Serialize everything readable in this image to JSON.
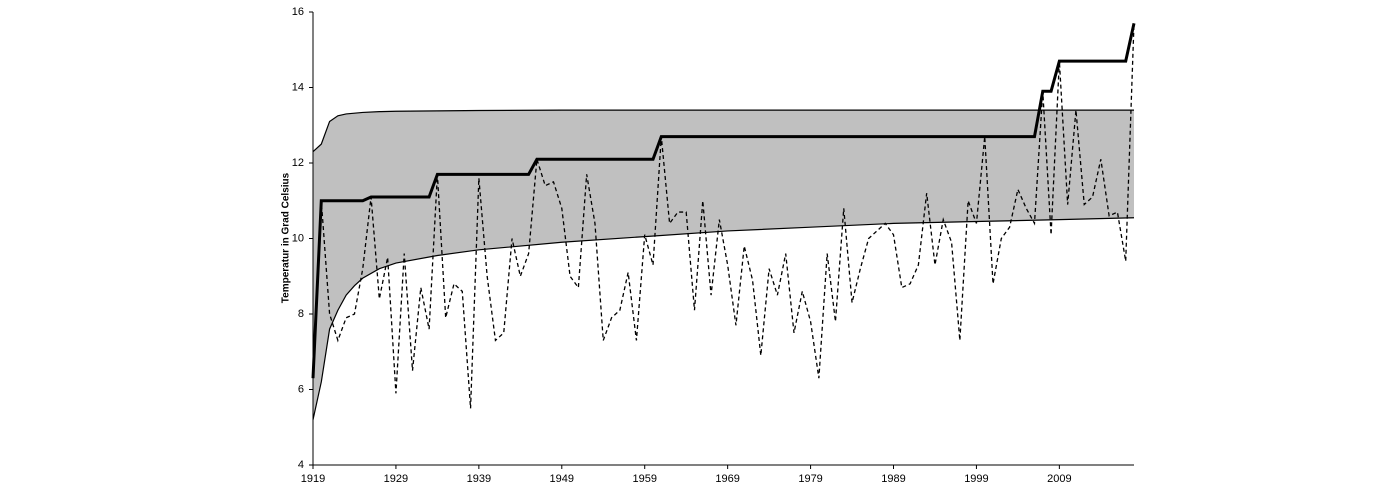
{
  "chart_data": {
    "type": "line",
    "ylabel": "Temperatur in Grad Celsius",
    "x": [
      1919,
      1920,
      1921,
      1922,
      1923,
      1924,
      1925,
      1926,
      1927,
      1928,
      1929,
      1930,
      1931,
      1932,
      1933,
      1934,
      1935,
      1936,
      1937,
      1938,
      1939,
      1940,
      1941,
      1942,
      1943,
      1944,
      1945,
      1946,
      1947,
      1948,
      1949,
      1950,
      1951,
      1952,
      1953,
      1954,
      1955,
      1956,
      1957,
      1958,
      1959,
      1960,
      1961,
      1962,
      1963,
      1964,
      1965,
      1966,
      1967,
      1968,
      1969,
      1970,
      1971,
      1972,
      1973,
      1974,
      1975,
      1976,
      1977,
      1978,
      1979,
      1980,
      1981,
      1982,
      1983,
      1984,
      1985,
      1986,
      1987,
      1988,
      1989,
      1990,
      1991,
      1992,
      1993,
      1994,
      1995,
      1996,
      1997,
      1998,
      1999,
      2000,
      2001,
      2002,
      2003,
      2004,
      2005,
      2006,
      2007,
      2008,
      2009,
      2010,
      2011,
      2012,
      2013,
      2014,
      2015,
      2016,
      2017,
      2018
    ],
    "series": [
      {
        "color": "#000000",
        "dashed": true,
        "width": 1.3,
        "values": [
          6.3,
          11.0,
          8.0,
          7.3,
          7.9,
          8.0,
          9.2,
          11.1,
          8.4,
          9.5,
          5.9,
          9.6,
          6.5,
          8.7,
          7.6,
          11.7,
          7.9,
          8.8,
          8.6,
          5.5,
          11.6,
          9.0,
          7.3,
          7.5,
          10.0,
          9.0,
          9.6,
          12.1,
          11.4,
          11.5,
          10.8,
          9.0,
          8.7,
          11.7,
          10.4,
          7.3,
          7.9,
          8.1,
          9.1,
          7.3,
          10.1,
          9.3,
          12.7,
          10.4,
          10.7,
          10.7,
          8.1,
          11.0,
          8.5,
          10.5,
          9.3,
          7.7,
          9.8,
          8.9,
          6.9,
          9.2,
          8.5,
          9.6,
          7.5,
          8.6,
          7.8,
          6.3,
          9.6,
          7.8,
          10.8,
          8.3,
          9.2,
          10.0,
          10.2,
          10.4,
          10.1,
          8.7,
          8.8,
          9.3,
          11.2,
          9.3,
          10.5,
          9.9,
          7.3,
          11.0,
          10.4,
          12.7,
          8.8,
          10.0,
          10.3,
          11.3,
          10.8,
          10.4,
          13.9,
          10.1,
          14.7,
          10.9,
          13.4,
          10.9,
          11.1,
          12.1,
          10.6,
          10.7,
          9.4,
          15.7
        ]
      },
      {
        "color": "#000000",
        "dashed": false,
        "width": 3,
        "values": [
          6.3,
          11.0,
          11.0,
          11.0,
          11.0,
          11.0,
          11.0,
          11.1,
          11.1,
          11.1,
          11.1,
          11.1,
          11.1,
          11.1,
          11.1,
          11.7,
          11.7,
          11.7,
          11.7,
          11.7,
          11.7,
          11.7,
          11.7,
          11.7,
          11.7,
          11.7,
          11.7,
          12.1,
          12.1,
          12.1,
          12.1,
          12.1,
          12.1,
          12.1,
          12.1,
          12.1,
          12.1,
          12.1,
          12.1,
          12.1,
          12.1,
          12.1,
          12.7,
          12.7,
          12.7,
          12.7,
          12.7,
          12.7,
          12.7,
          12.7,
          12.7,
          12.7,
          12.7,
          12.7,
          12.7,
          12.7,
          12.7,
          12.7,
          12.7,
          12.7,
          12.7,
          12.7,
          12.7,
          12.7,
          12.7,
          12.7,
          12.7,
          12.7,
          12.7,
          12.7,
          12.7,
          12.7,
          12.7,
          12.7,
          12.7,
          12.7,
          12.7,
          12.7,
          12.7,
          12.7,
          12.7,
          12.7,
          12.7,
          12.7,
          12.7,
          12.7,
          12.7,
          12.7,
          13.9,
          13.9,
          14.7,
          14.7,
          14.7,
          14.7,
          14.7,
          14.7,
          14.7,
          14.7,
          14.7,
          15.7
        ]
      }
    ],
    "band": {
      "color": "#c0c0c0",
      "x": [
        1919,
        1920,
        1921,
        1922,
        1923,
        1924,
        1925,
        1927,
        1929,
        1934,
        1939,
        1949,
        1959,
        1969,
        1979,
        1989,
        1999,
        2009,
        2018
      ],
      "upper": [
        12.3,
        12.5,
        13.1,
        13.25,
        13.3,
        13.32,
        13.34,
        13.36,
        13.37,
        13.38,
        13.39,
        13.4,
        13.4,
        13.4,
        13.4,
        13.4,
        13.4,
        13.4,
        13.4
      ],
      "lower": [
        5.2,
        6.2,
        7.6,
        8.1,
        8.5,
        8.75,
        8.95,
        9.2,
        9.35,
        9.55,
        9.7,
        9.9,
        10.05,
        10.2,
        10.3,
        10.4,
        10.45,
        10.5,
        10.55
      ]
    },
    "xlim": [
      1919,
      2018
    ],
    "xticks": [
      1919,
      1929,
      1939,
      1949,
      1959,
      1969,
      1979,
      1989,
      1999,
      2009
    ],
    "ylim": [
      4,
      16
    ],
    "yticks": [
      4,
      6,
      8,
      10,
      12,
      14,
      16
    ],
    "grid": false
  }
}
